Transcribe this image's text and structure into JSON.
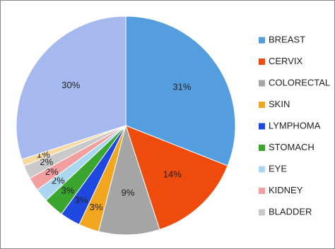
{
  "chart_data": {
    "type": "pie",
    "categories": [
      "BREAST",
      "CERVIX",
      "COLORECTAL",
      "SKIN",
      "LYMPHOMA",
      "STOMACH",
      "EYE",
      "KIDNEY",
      "BLADDER",
      null,
      null
    ],
    "values": [
      31,
      14,
      9,
      3,
      3,
      3,
      2,
      2,
      2,
      1,
      30
    ],
    "value_labels": [
      "31%",
      "14%",
      "9%",
      "3%",
      "3%",
      "3%",
      "2%",
      "2%",
      "2%",
      "1%",
      "30%"
    ],
    "colors": [
      "#549ee0",
      "#ee4b0c",
      "#a5a5a5",
      "#f2a61f",
      "#1f48e0",
      "#3aa52f",
      "#a9d7ef",
      "#f49f9f",
      "#c9c9c9",
      "#f6d8a1",
      "#a5b9ef"
    ],
    "legend": "right"
  }
}
